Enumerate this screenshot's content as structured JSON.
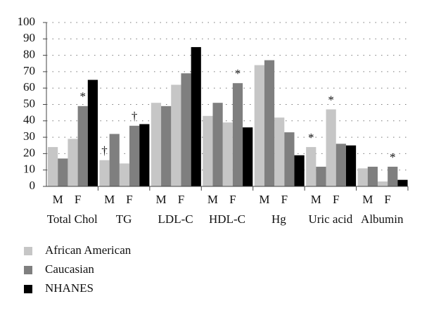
{
  "chart_data": {
    "type": "grouped_bar",
    "categories": [
      "Total Chol",
      "TG",
      "LDL-C",
      "HDL-C",
      "Hg",
      "Uric acid",
      "Albumin"
    ],
    "sex_labels": [
      "M",
      "F"
    ],
    "ylim": [
      0,
      100
    ],
    "yticks": [
      0,
      10,
      20,
      30,
      40,
      50,
      60,
      70,
      80,
      90,
      100
    ],
    "grid": true,
    "series": [
      {
        "name": "African American",
        "color": "#c6c6c6",
        "values": [
          [
            24,
            29
          ],
          [
            16,
            14
          ],
          [
            51,
            62
          ],
          [
            43,
            39
          ],
          [
            74,
            42
          ],
          [
            24,
            47
          ],
          [
            11,
            3
          ]
        ],
        "annotations": [
          [
            null,
            null
          ],
          [
            "†",
            null
          ],
          [
            null,
            null
          ],
          [
            null,
            null
          ],
          [
            null,
            null
          ],
          [
            "*",
            "*"
          ],
          [
            null,
            null
          ]
        ]
      },
      {
        "name": "Caucasian",
        "color": "#7f7f7f",
        "values": [
          [
            17,
            49
          ],
          [
            32,
            37
          ],
          [
            49,
            69
          ],
          [
            51,
            63
          ],
          [
            77,
            33
          ],
          [
            12,
            26
          ],
          [
            12,
            12
          ]
        ],
        "annotations": [
          [
            null,
            "*"
          ],
          [
            null,
            "†"
          ],
          [
            null,
            null
          ],
          [
            null,
            "*"
          ],
          [
            null,
            null
          ],
          [
            null,
            null
          ],
          [
            null,
            "*"
          ]
        ]
      },
      {
        "name": "NHANES",
        "color": "#000000",
        "values": [
          65,
          38,
          85,
          36,
          19,
          25,
          4
        ]
      }
    ]
  }
}
